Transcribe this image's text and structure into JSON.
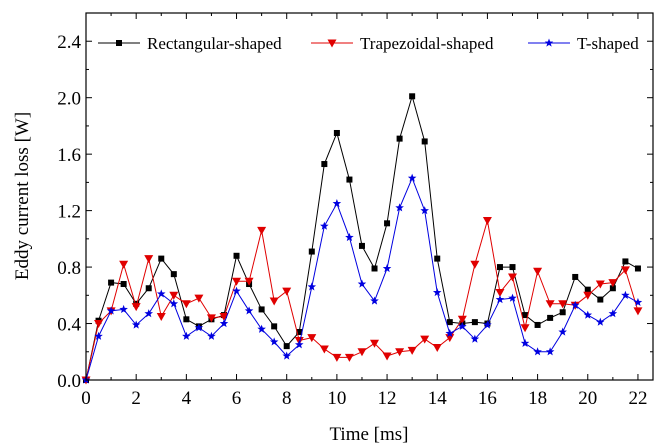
{
  "chart_data": {
    "type": "line",
    "xlabel": "Time [ms]",
    "ylabel": "Eddy current loss [W]",
    "xlim": [
      0,
      22.6
    ],
    "ylim": [
      0,
      2.6
    ],
    "xticks": [
      0,
      2,
      4,
      6,
      8,
      10,
      12,
      14,
      16,
      18,
      20,
      22
    ],
    "yticks": [
      0.0,
      0.4,
      0.8,
      1.2,
      1.6,
      2.0,
      2.4
    ],
    "xtick_labels": [
      "0",
      "2",
      "4",
      "6",
      "8",
      "10",
      "12",
      "14",
      "16",
      "18",
      "20",
      "22"
    ],
    "ytick_labels": [
      "0.0",
      "0.4",
      "0.8",
      "1.2",
      "1.6",
      "2.0",
      "2.4"
    ],
    "grid": false,
    "legend_position": "top",
    "x": [
      0,
      0.5,
      1,
      1.5,
      2,
      2.5,
      3,
      3.5,
      4,
      4.5,
      5,
      5.5,
      6,
      6.5,
      7,
      7.5,
      8,
      8.5,
      9,
      9.5,
      10,
      10.5,
      11,
      11.5,
      12,
      12.5,
      13,
      13.5,
      14,
      14.5,
      15,
      15.5,
      16,
      16.5,
      17,
      17.5,
      18,
      18.5,
      19,
      19.5,
      20,
      20.5,
      21,
      21.5,
      22
    ],
    "series": [
      {
        "name": "Rectangular-shaped",
        "color": "#000000",
        "marker": "square",
        "values": [
          0.0,
          0.42,
          0.69,
          0.68,
          0.54,
          0.65,
          0.86,
          0.75,
          0.43,
          0.38,
          0.43,
          0.46,
          0.88,
          0.68,
          0.5,
          0.38,
          0.24,
          0.34,
          0.91,
          1.53,
          1.75,
          1.42,
          0.95,
          0.79,
          1.11,
          1.71,
          2.01,
          1.69,
          0.86,
          0.41,
          0.4,
          0.41,
          0.4,
          0.8,
          0.8,
          0.46,
          0.39,
          0.44,
          0.48,
          0.73,
          0.64,
          0.57,
          0.65,
          0.84,
          0.79
        ]
      },
      {
        "name": "Trapezoidal-shaped",
        "color": "#e00000",
        "marker": "triangle-down",
        "values": [
          0.0,
          0.4,
          0.49,
          0.82,
          0.52,
          0.86,
          0.45,
          0.6,
          0.54,
          0.58,
          0.44,
          0.45,
          0.7,
          0.7,
          1.06,
          0.56,
          0.63,
          0.28,
          0.3,
          0.22,
          0.16,
          0.16,
          0.2,
          0.26,
          0.17,
          0.2,
          0.21,
          0.29,
          0.23,
          0.3,
          0.43,
          0.82,
          1.13,
          0.62,
          0.73,
          0.37,
          0.77,
          0.54,
          0.54,
          0.53,
          0.6,
          0.68,
          0.69,
          0.78,
          0.49
        ]
      },
      {
        "name": "T-shaped",
        "color": "#0000e0",
        "marker": "star",
        "values": [
          0.0,
          0.31,
          0.49,
          0.5,
          0.39,
          0.47,
          0.61,
          0.54,
          0.31,
          0.37,
          0.31,
          0.4,
          0.63,
          0.49,
          0.36,
          0.27,
          0.17,
          0.25,
          0.66,
          1.09,
          1.25,
          1.01,
          0.68,
          0.56,
          0.79,
          1.22,
          1.43,
          1.2,
          0.62,
          0.33,
          0.38,
          0.29,
          0.39,
          0.57,
          0.58,
          0.26,
          0.2,
          0.2,
          0.34,
          0.53,
          0.46,
          0.41,
          0.47,
          0.6,
          0.55
        ]
      }
    ]
  }
}
